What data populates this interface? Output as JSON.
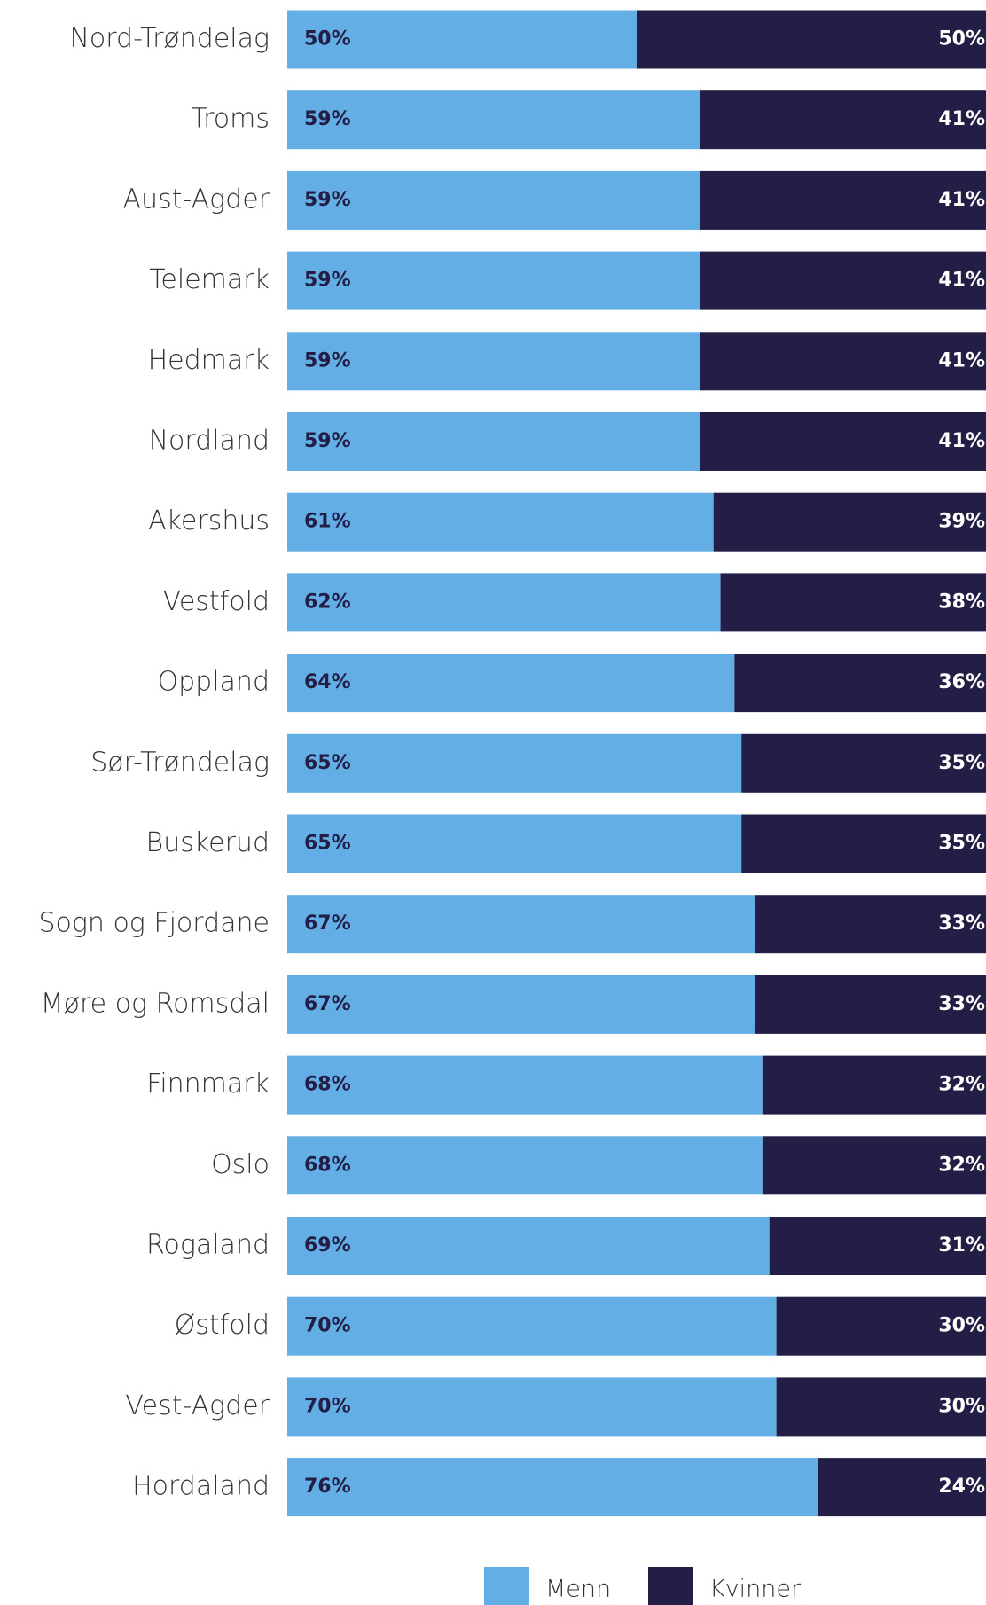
{
  "chart_data": {
    "type": "stacked-barh",
    "categories": [
      "Nord-Trøndelag",
      "Troms",
      "Aust-Agder",
      "Telemark",
      "Hedmark",
      "Nordland",
      "Akershus",
      "Vestfold",
      "Oppland",
      "Sør-Trøndelag",
      "Buskerud",
      "Sogn og Fjordane",
      "Møre og Romsdal",
      "Finnmark",
      "Oslo",
      "Rogaland",
      "Østfold",
      "Vest-Agder",
      "Hordaland"
    ],
    "series": [
      {
        "name": "Menn",
        "color": "#64aee6",
        "values": [
          50,
          59,
          59,
          59,
          59,
          59,
          61,
          62,
          64,
          65,
          65,
          67,
          67,
          68,
          68,
          69,
          70,
          70,
          76
        ],
        "value_labels": [
          "50%",
          "59%",
          "59%",
          "59%",
          "59%",
          "59%",
          "61%",
          "62%",
          "64%",
          "65%",
          "65%",
          "67%",
          "67%",
          "68%",
          "68%",
          "69%",
          "70%",
          "70%",
          "76%"
        ]
      },
      {
        "name": "Kvinner",
        "color": "#221e46",
        "values": [
          50,
          41,
          41,
          41,
          41,
          41,
          39,
          38,
          36,
          35,
          35,
          33,
          33,
          32,
          32,
          31,
          30,
          30,
          24
        ],
        "value_labels": [
          "50%",
          "41%",
          "41%",
          "41%",
          "41%",
          "41%",
          "39%",
          "38%",
          "36%",
          "35%",
          "35%",
          "33%",
          "33%",
          "32%",
          "32%",
          "31%",
          "30%",
          "30%",
          "24%"
        ]
      }
    ],
    "xlim": [
      0,
      100
    ],
    "legend": "bottom"
  }
}
